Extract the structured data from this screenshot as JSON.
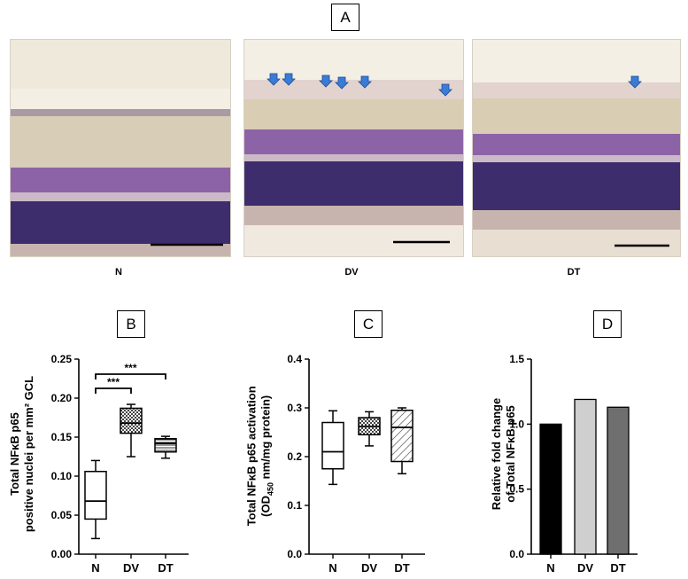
{
  "panel_A": {
    "label": "A",
    "images": [
      {
        "label": "N",
        "arrow_count": 0
      },
      {
        "label": "DV",
        "arrow_count": 7
      },
      {
        "label": "DT",
        "arrow_count": 1
      }
    ]
  },
  "chart_data": [
    {
      "panel": "B",
      "type": "box",
      "categories": [
        "N",
        "DV",
        "DT"
      ],
      "ylabel_line1": "Total NFκB p65",
      "ylabel_line2": "positive nuclei per mm² GCL",
      "ylim": [
        0,
        0.25
      ],
      "yticks": [
        "0.00",
        "0.05",
        "0.10",
        "0.15",
        "0.20",
        "0.25"
      ],
      "ytick_values": [
        0,
        0.05,
        0.1,
        0.15,
        0.2,
        0.25
      ],
      "boxes": [
        {
          "name": "N",
          "min": 0.02,
          "q1": 0.045,
          "median": 0.068,
          "q3": 0.106,
          "max": 0.12,
          "fill": "none"
        },
        {
          "name": "DV",
          "min": 0.125,
          "q1": 0.155,
          "median": 0.168,
          "q3": 0.187,
          "max": 0.192,
          "fill": "crosshatch"
        },
        {
          "name": "DT",
          "min": 0.123,
          "q1": 0.131,
          "median": 0.142,
          "q3": 0.148,
          "max": 0.151,
          "fill": "hlines"
        }
      ],
      "annotations": [
        {
          "from": "N",
          "to": "DV",
          "text": "***"
        },
        {
          "from": "N",
          "to": "DT",
          "text": "***"
        }
      ]
    },
    {
      "panel": "C",
      "type": "box",
      "categories": [
        "N",
        "DV",
        "DT"
      ],
      "ylabel_line1": "Total NFκB p65 activation",
      "ylabel_line2": "(OD450 nm/mg protein)",
      "ylim": [
        0,
        0.4
      ],
      "yticks": [
        "0.0",
        "0.1",
        "0.2",
        "0.3",
        "0.4"
      ],
      "ytick_values": [
        0,
        0.1,
        0.2,
        0.3,
        0.4
      ],
      "boxes": [
        {
          "name": "N",
          "min": 0.143,
          "q1": 0.175,
          "median": 0.21,
          "q3": 0.27,
          "max": 0.294,
          "fill": "none"
        },
        {
          "name": "DV",
          "min": 0.222,
          "q1": 0.245,
          "median": 0.262,
          "q3": 0.28,
          "max": 0.292,
          "fill": "crosshatch"
        },
        {
          "name": "DT",
          "min": 0.165,
          "q1": 0.19,
          "median": 0.26,
          "q3": 0.295,
          "max": 0.3,
          "fill": "diag"
        }
      ]
    },
    {
      "panel": "D",
      "type": "bar",
      "categories": [
        "N",
        "DV",
        "DT"
      ],
      "values": [
        1.0,
        1.19,
        1.13
      ],
      "bar_colors": [
        "#000000",
        "#cfcfcf",
        "#6f6f6f"
      ],
      "ylabel_line1": "Relative fold change",
      "ylabel_line2": "of Total NFκB p65",
      "ylim": [
        0,
        1.5
      ],
      "yticks": [
        "0.0",
        "0.5",
        "1.0",
        "1.5"
      ],
      "ytick_values": [
        0,
        0.5,
        1.0,
        1.5
      ]
    }
  ]
}
